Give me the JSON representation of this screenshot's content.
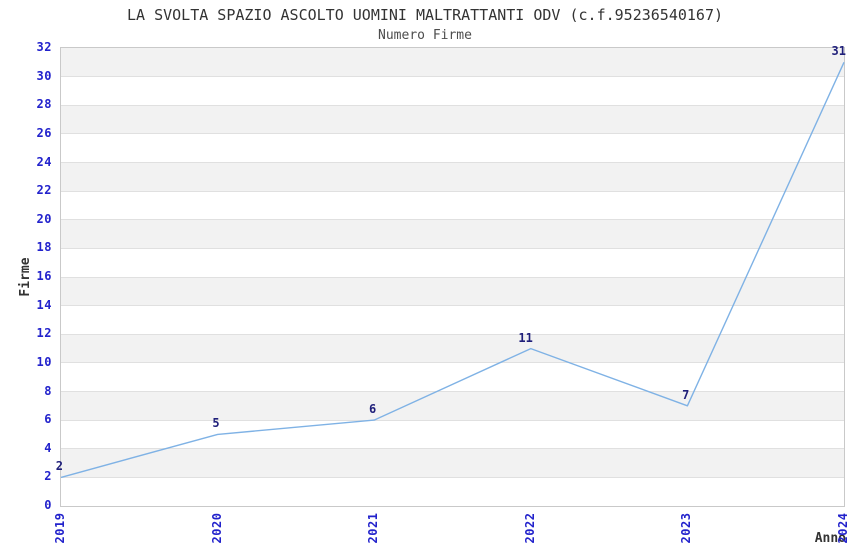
{
  "page": {
    "background": "#ffffff"
  },
  "chart_data": {
    "type": "line",
    "title": "LA SVOLTA SPAZIO ASCOLTO UOMINI MALTRATTANTI ODV (c.f.95236540167)",
    "subtitle": "Numero Firme",
    "xlabel": "Anno",
    "ylabel": "Firme",
    "categories": [
      "2019",
      "2020",
      "2021",
      "2022",
      "2023",
      "2024"
    ],
    "values": [
      2,
      5,
      6,
      11,
      7,
      31
    ],
    "ylim": [
      0,
      32
    ],
    "ytick_step": 2,
    "yticks": [
      0,
      2,
      4,
      6,
      8,
      10,
      12,
      14,
      16,
      18,
      20,
      22,
      24,
      26,
      28,
      30,
      32
    ],
    "grid": true,
    "banded_background": true,
    "legend_position": "none",
    "x_tick_rotation_deg": 90,
    "colors": {
      "line": "#7fb2e5",
      "tick_label": "#2222cc",
      "data_label": "#1f1f7a",
      "band": "#f2f2f2",
      "gridline": "#e0e0e0",
      "plot_border": "#c9c9c9",
      "title": "#333333",
      "subtitle": "#4d4d4d",
      "axis_title": "#333333"
    }
  }
}
